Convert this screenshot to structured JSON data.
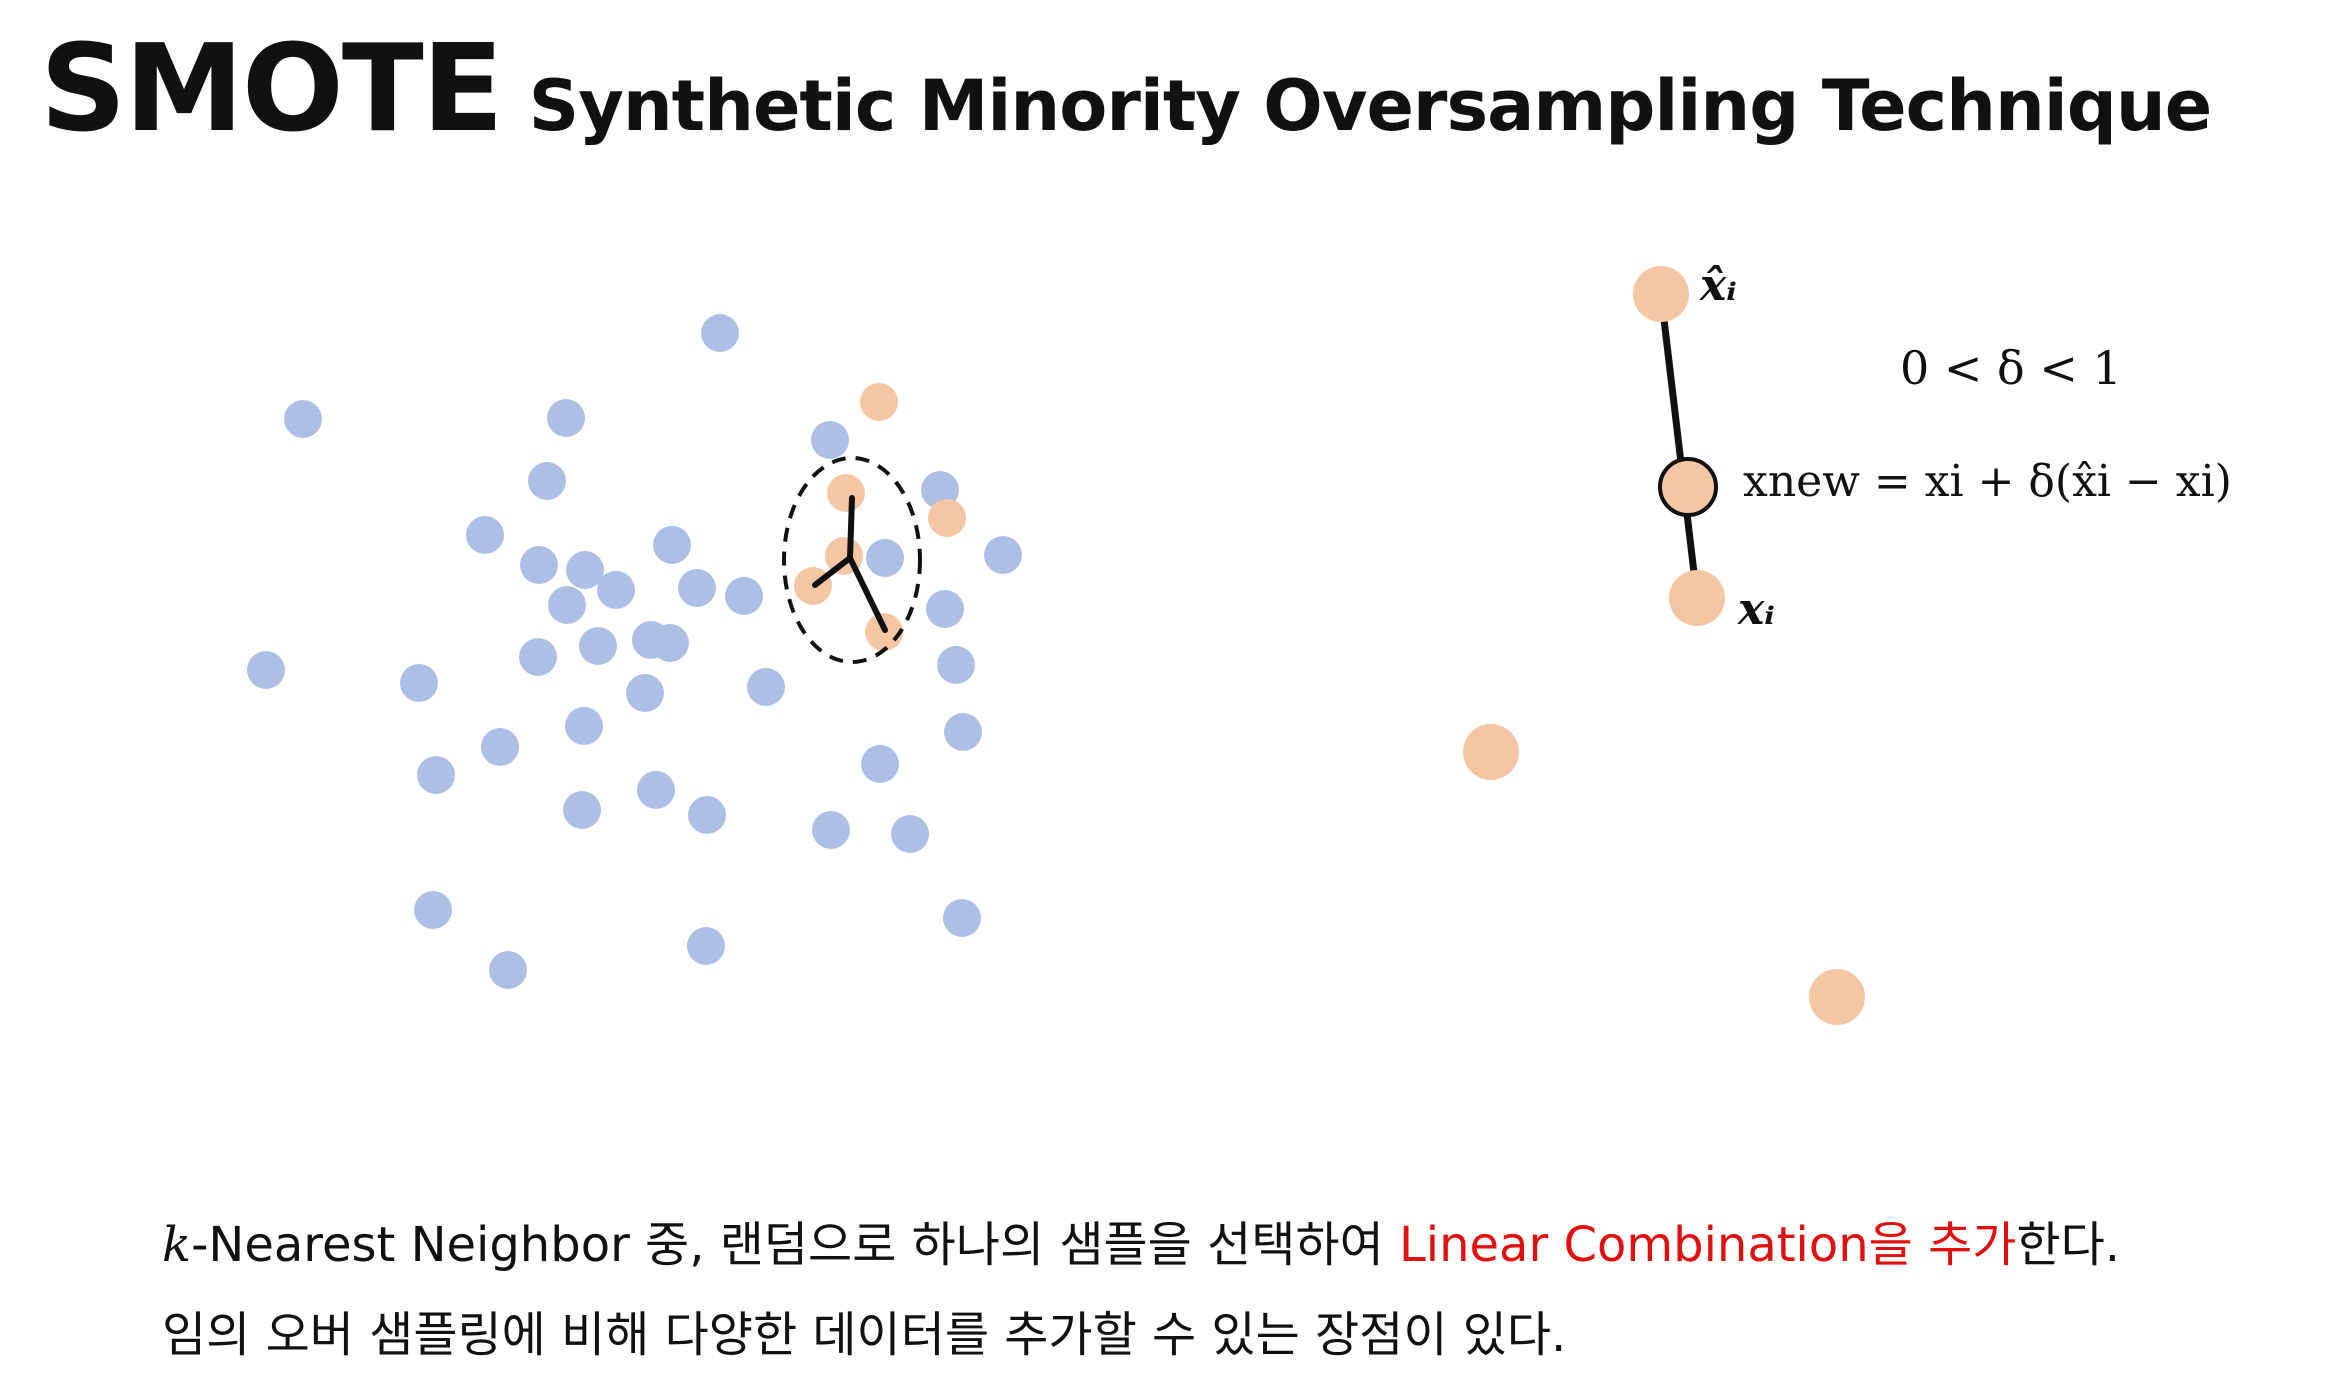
{
  "header": {
    "title": "SMOTE",
    "subtitle": "Synthetic Minority Oversampling Technique"
  },
  "colors": {
    "majority": "#aebfe6",
    "minority": "#f5c6a3",
    "line": "#111111",
    "highlight": "#e01010"
  },
  "diagram": {
    "labels": {
      "x_hat_i": "x̂ᵢ",
      "x_i": "xᵢ",
      "delta_range": "0 < δ < 1",
      "x_new_formula": "xnew = xi + δ(x̂i − xi)"
    }
  },
  "caption": {
    "line1_k": "k",
    "line1_a": "-Nearest Neighbor 중, 랜덤으로 하나의 샘플을 선택하여 ",
    "line1_highlight": "Linear Combination을 추가",
    "line1_b": "한다.",
    "line2": "임의 오버 샘플링에 비해 다양한 데이터를 추가할 수 있는 장점이 있다."
  }
}
